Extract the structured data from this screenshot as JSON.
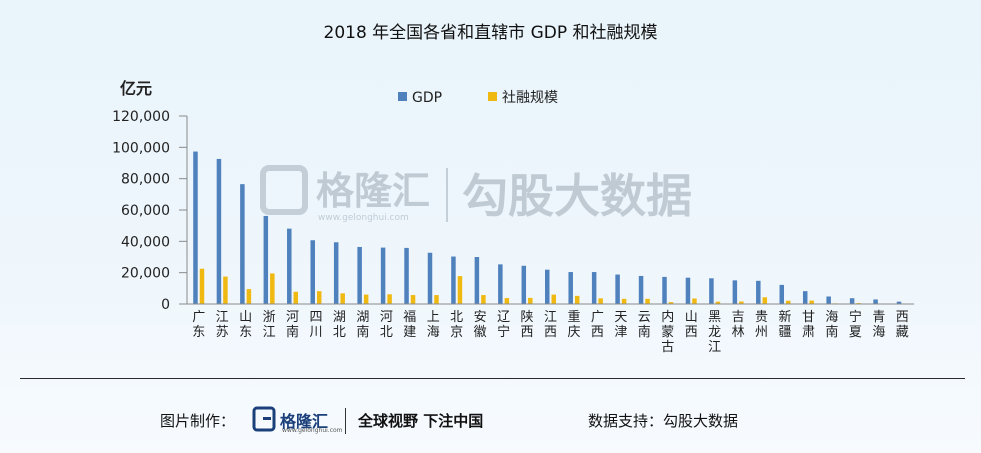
{
  "chart_data": {
    "type": "bar",
    "title": "2018  年全国各省和直辖市 GDP  和社融规模",
    "ylabel": "亿元",
    "ylim": [
      0,
      120000
    ],
    "yticks": [
      "0",
      "20,000",
      "40,000",
      "60,000",
      "80,000",
      "100,000",
      "120,000"
    ],
    "legend_position": "top-center",
    "categories": [
      "广东",
      "江苏",
      "山东",
      "浙江",
      "河南",
      "四川",
      "湖北",
      "湖南",
      "河北",
      "福建",
      "上海",
      "北京",
      "安徽",
      "辽宁",
      "陕西",
      "江西",
      "重庆",
      "广西",
      "天津",
      "云南",
      "内蒙古",
      "山西",
      "黑龙江",
      "吉林",
      "贵州",
      "新疆",
      "甘肃",
      "海南",
      "宁夏",
      "青海",
      "西藏"
    ],
    "series": [
      {
        "name": "GDP",
        "color": "#4f81bd",
        "values": [
          97300,
          92600,
          76500,
          56200,
          48100,
          40700,
          39400,
          36400,
          36000,
          35800,
          32700,
          30300,
          30000,
          25300,
          24400,
          21900,
          20400,
          20400,
          18800,
          17900,
          17300,
          16800,
          16400,
          15100,
          14800,
          12200,
          8200,
          4800,
          3700,
          2900,
          1500
        ]
      },
      {
        "name": "社融规模",
        "color": "#f0b911",
        "values": [
          22500,
          17500,
          9500,
          19500,
          7800,
          8200,
          6800,
          6000,
          6200,
          5700,
          5700,
          17800,
          5700,
          3800,
          3900,
          6000,
          5200,
          3600,
          3300,
          3300,
          1200,
          3500,
          1500,
          1600,
          4300,
          2100,
          2200,
          400,
          600,
          300,
          200
        ]
      }
    ]
  },
  "watermark": {
    "brand": "格隆汇",
    "url": "www.gelonghui.com",
    "text": "勾股大数据"
  },
  "footer": {
    "credit_label": "图片制作：",
    "brand": "格隆汇",
    "brand_url": "www.gelonghui.com",
    "slogan": "全球视野 下注中国",
    "source": "数据支持：勾股大数据"
  }
}
